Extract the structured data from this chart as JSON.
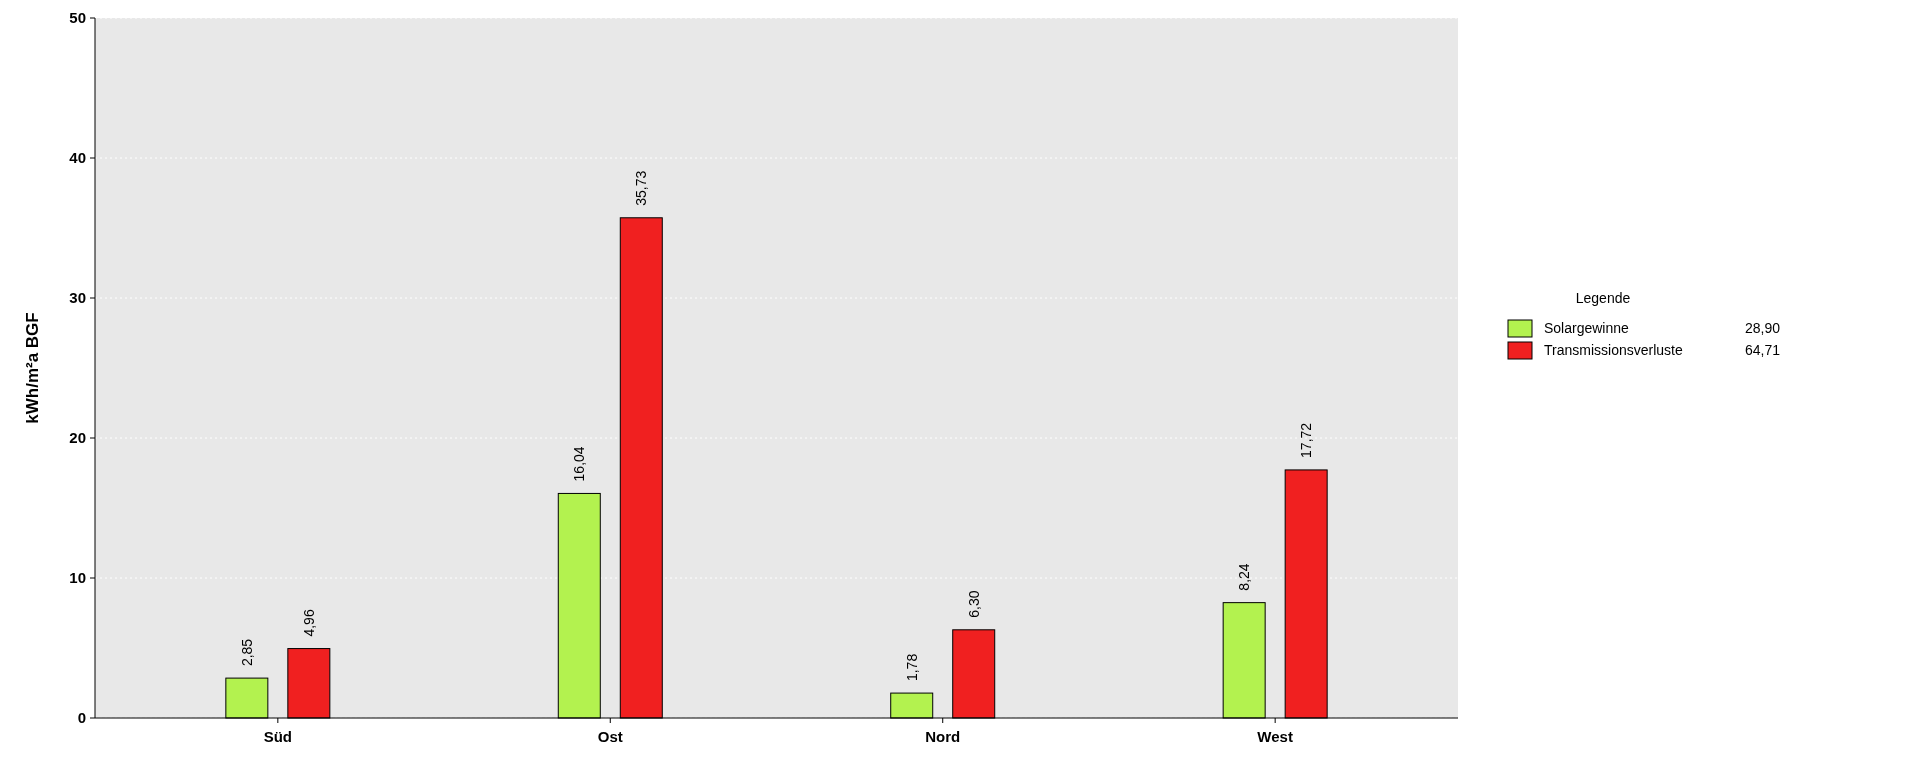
{
  "chart_data": {
    "type": "bar",
    "ylabel": "kWh/m²a BGF",
    "legend_title": "Legende",
    "categories": [
      "Süd",
      "Ost",
      "Nord",
      "West"
    ],
    "series": [
      {
        "name": "Solargewinne",
        "color": "#b3f24f",
        "values": [
          2.85,
          16.04,
          1.78,
          8.24
        ],
        "value_labels": [
          "2,85",
          "16,04",
          "1,78",
          "8,24"
        ]
      },
      {
        "name": "Transmissionsverluste",
        "color": "#f02020",
        "values": [
          4.96,
          35.73,
          6.3,
          17.72
        ],
        "value_labels": [
          "4,96",
          "35,73",
          "6,30",
          "17,72"
        ]
      }
    ],
    "annotations": [
      "28,90",
      "64,71"
    ],
    "ylim": [
      0,
      50
    ],
    "yticks": [
      0,
      10,
      20,
      30,
      40,
      50
    ],
    "grid": "y",
    "legend": "right"
  }
}
